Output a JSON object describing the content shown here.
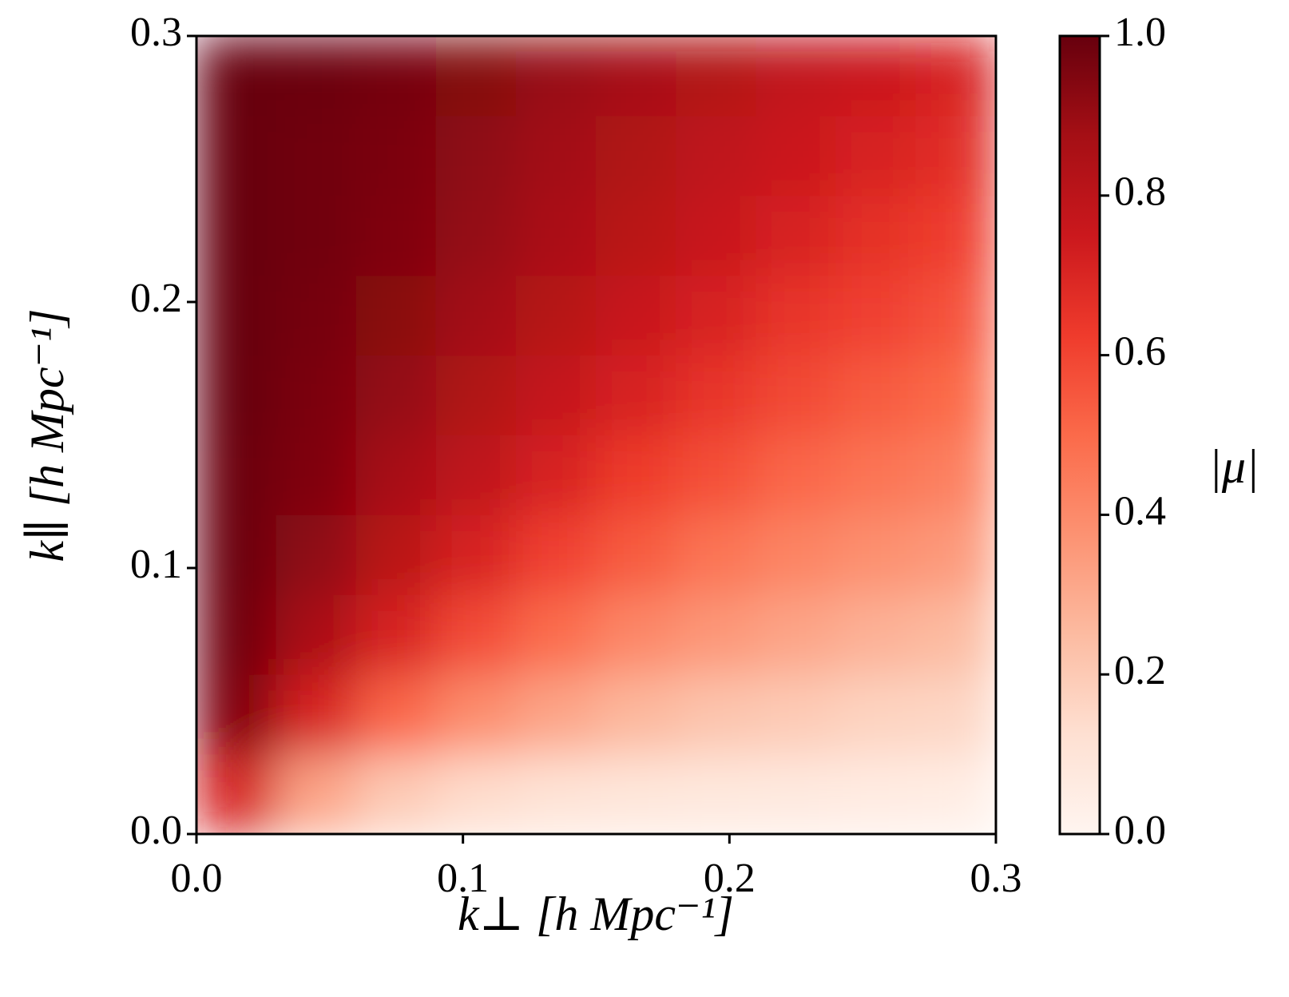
{
  "chart_data": {
    "type": "heatmap",
    "xlabel": "k⊥ [h Mpc⁻¹]",
    "ylabel": "k∥ [h Mpc⁻¹]",
    "colorbar_label": "|μ|",
    "x": [
      0.015,
      0.045,
      0.075,
      0.105,
      0.135,
      0.165,
      0.195,
      0.225,
      0.255,
      0.285
    ],
    "y": [
      0.015,
      0.045,
      0.075,
      0.105,
      0.135,
      0.165,
      0.195,
      0.225,
      0.255,
      0.285
    ],
    "z": [
      [
        0.71,
        0.32,
        0.2,
        0.14,
        0.11,
        0.09,
        0.08,
        0.07,
        0.06,
        0.05
      ],
      [
        0.95,
        0.71,
        0.51,
        0.39,
        0.32,
        0.26,
        0.22,
        0.2,
        0.17,
        0.16
      ],
      [
        0.98,
        0.86,
        0.71,
        0.58,
        0.49,
        0.41,
        0.36,
        0.32,
        0.28,
        0.25
      ],
      [
        0.99,
        0.92,
        0.81,
        0.71,
        0.61,
        0.54,
        0.47,
        0.42,
        0.38,
        0.35
      ],
      [
        0.99,
        0.95,
        0.87,
        0.79,
        0.71,
        0.63,
        0.57,
        0.51,
        0.47,
        0.43
      ],
      [
        1.0,
        0.96,
        0.91,
        0.84,
        0.77,
        0.71,
        0.65,
        0.59,
        0.54,
        0.5
      ],
      [
        1.0,
        0.97,
        0.93,
        0.88,
        0.82,
        0.76,
        0.71,
        0.65,
        0.61,
        0.56
      ],
      [
        1.0,
        0.98,
        0.95,
        0.91,
        0.86,
        0.81,
        0.76,
        0.71,
        0.66,
        0.62
      ],
      [
        1.0,
        0.98,
        0.96,
        0.92,
        0.88,
        0.84,
        0.79,
        0.75,
        0.71,
        0.67
      ],
      [
        1.0,
        0.99,
        0.97,
        0.94,
        0.9,
        0.87,
        0.83,
        0.78,
        0.75,
        0.71
      ]
    ],
    "xlim": [
      0,
      0.3
    ],
    "ylim": [
      0,
      0.3
    ],
    "xticks": [
      {
        "value": 0,
        "label": "0.0"
      },
      0.1,
      0.2,
      0.3
    ],
    "yticks": [
      {
        "value": 0,
        "label": "0.0"
      },
      0.1,
      0.2,
      0.3
    ],
    "clim": [
      0,
      1
    ],
    "cticks": [
      {
        "value": 0,
        "label": "0.0"
      },
      0.2,
      0.4,
      0.6,
      0.8,
      {
        "value": 1,
        "label": "1.0"
      }
    ],
    "colormap": [
      "#fff5f0",
      "#fee0d2",
      "#fcbba1",
      "#fc9272",
      "#fb6a4a",
      "#ef3b2c",
      "#cb181d",
      "#a50f15",
      "#67000d"
    ]
  }
}
